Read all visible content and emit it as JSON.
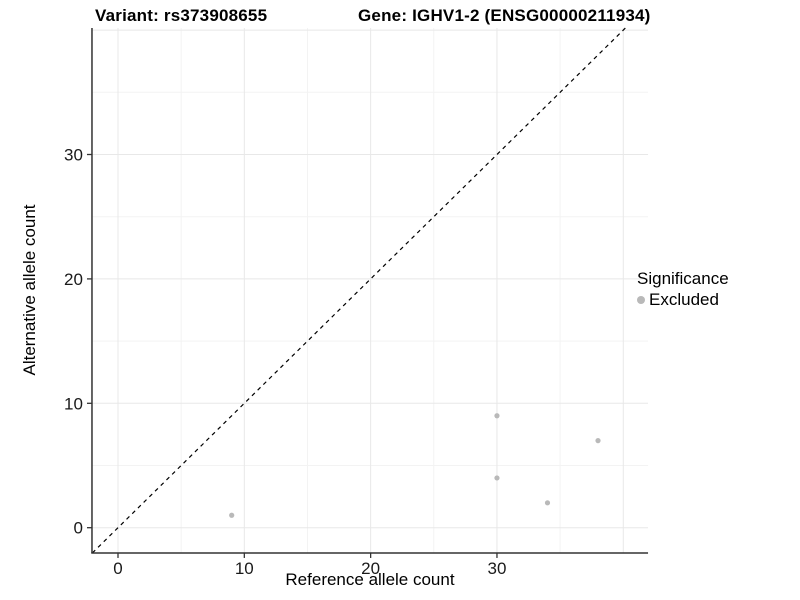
{
  "chart_data": {
    "type": "scatter",
    "title_left": "Variant: rs373908655",
    "title_right": "Gene: IGHV1-2 (ENSG00000211934)",
    "xlabel": "Reference allele count",
    "ylabel": "Alternative allele count",
    "xlim": [
      -2.06,
      41.96
    ],
    "ylim": [
      -2.03,
      40.17
    ],
    "x_ticks": [
      0,
      10,
      20,
      30
    ],
    "y_ticks": [
      0,
      10,
      20,
      30
    ],
    "x_grid_major": [
      0,
      10,
      20,
      30,
      40
    ],
    "x_grid_minor": [
      5,
      15,
      25,
      35
    ],
    "y_grid_major": [
      0,
      10,
      20,
      30,
      40
    ],
    "y_grid_minor": [
      5,
      15,
      25,
      35
    ],
    "grid": true,
    "legend_position": "right",
    "reference_line": {
      "kind": "identity y=x",
      "style": "dashed",
      "color": "#000000"
    },
    "series": [
      {
        "name": "Excluded",
        "color": "#b9b9b9",
        "points": [
          [
            9,
            1
          ],
          [
            30,
            9
          ],
          [
            30,
            4
          ],
          [
            34,
            2
          ],
          [
            38,
            7
          ]
        ]
      }
    ],
    "legend": {
      "title": "Significance",
      "items": [
        {
          "label": "Excluded",
          "color": "#b9b9b9"
        }
      ]
    },
    "colors": {
      "background": "#ffffff",
      "grid_major": "#e8e8e8",
      "grid_minor": "#f3f3f3",
      "axis_line": "#333333",
      "tick_label": "#1a1a1a",
      "point": "#b9b9b9"
    }
  }
}
